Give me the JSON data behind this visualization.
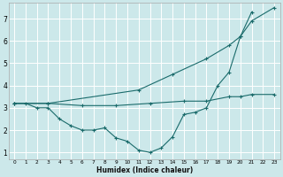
{
  "xlabel": "Humidex (Indice chaleur)",
  "bg_color": "#cce8ea",
  "grid_color": "#ffffff",
  "line_color": "#1a6b6b",
  "xlim": [
    -0.5,
    23.5
  ],
  "ylim": [
    0.7,
    7.7
  ],
  "xticks": [
    0,
    1,
    2,
    3,
    4,
    5,
    6,
    7,
    8,
    9,
    10,
    11,
    12,
    13,
    14,
    15,
    16,
    17,
    18,
    19,
    20,
    21,
    22,
    23
  ],
  "yticks": [
    1,
    2,
    3,
    4,
    5,
    6,
    7
  ],
  "series": [
    {
      "x": [
        0,
        3,
        11,
        14,
        17,
        19,
        20,
        21,
        23
      ],
      "y": [
        3.2,
        3.2,
        3.8,
        4.5,
        5.2,
        5.8,
        6.2,
        6.9,
        7.5
      ]
    },
    {
      "x": [
        0,
        3,
        6,
        9,
        12,
        15,
        17,
        19,
        20,
        21,
        23
      ],
      "y": [
        3.2,
        3.2,
        3.1,
        3.1,
        3.2,
        3.3,
        3.3,
        3.5,
        3.5,
        3.6,
        3.6
      ]
    },
    {
      "x": [
        0,
        1,
        2,
        3,
        4,
        5,
        6,
        7,
        8,
        9,
        10,
        11,
        12,
        13,
        14,
        15,
        16,
        17,
        18,
        19,
        20,
        21
      ],
      "y": [
        3.2,
        3.2,
        3.0,
        3.0,
        2.5,
        2.2,
        2.0,
        2.0,
        2.1,
        1.65,
        1.5,
        1.1,
        1.0,
        1.2,
        1.7,
        2.7,
        2.8,
        3.0,
        4.0,
        4.6,
        6.2,
        7.3
      ]
    }
  ]
}
